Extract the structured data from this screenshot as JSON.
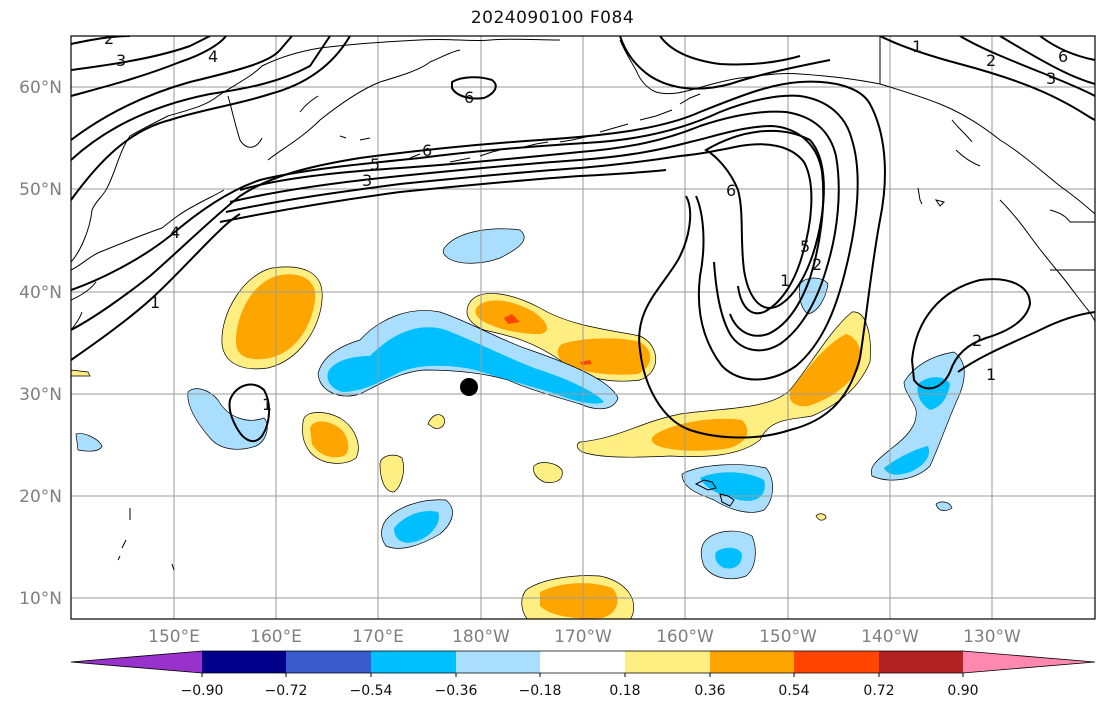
{
  "title": "2024090100 F084",
  "map": {
    "projection": "plate-carree",
    "lon_range": "140E-120W",
    "lat_range": "8N-65N",
    "grid": true,
    "lat_labels": [
      "10°N",
      "20°N",
      "30°N",
      "40°N",
      "50°N",
      "60°N"
    ],
    "lon_labels": [
      "150°E",
      "160°E",
      "170°E",
      "180°W",
      "170°W",
      "160°W",
      "150°W",
      "140°W",
      "130°W"
    ],
    "contour_labels": [
      "1",
      "2",
      "3",
      "4",
      "5",
      "6"
    ],
    "marker": {
      "name": "storm-center-dot",
      "lat": 30.5,
      "lon": -179.0,
      "color": "#000000"
    }
  },
  "colorbar": {
    "ticks": [
      "−0.90",
      "−0.72",
      "−0.54",
      "−0.36",
      "−0.18",
      "0.18",
      "0.36",
      "0.54",
      "0.72",
      "0.90"
    ],
    "colors": [
      "#9932cc",
      "#00008b",
      "#3a5ccc",
      "#00bfff",
      "#aadeff",
      "#ffffff",
      "#ffee82",
      "#ffa500",
      "#ff4500",
      "#b22222",
      "#ff88b0"
    ],
    "extend": "both"
  }
}
